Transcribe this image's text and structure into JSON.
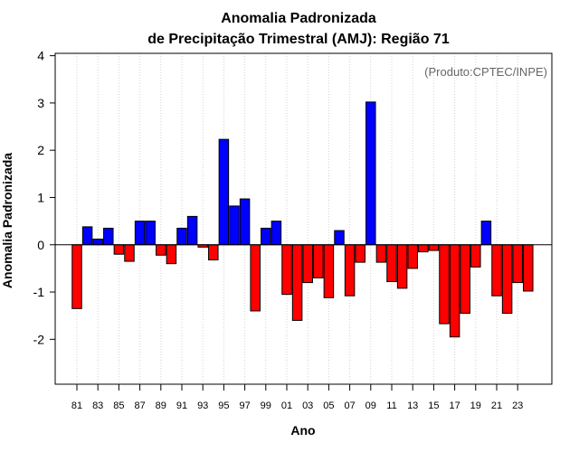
{
  "chart_data": {
    "type": "bar",
    "title": "Anomalia Padronizada",
    "subtitle": "de Precipitação Trimestral (AMJ): Região 71",
    "xlabel": "Ano",
    "ylabel": "Anomalia Padronizada",
    "annotation": "(Produto:CPTEC/INPE)",
    "ylim": [
      -2.95,
      4.05
    ],
    "yticks": [
      -2,
      -1,
      0,
      1,
      2,
      3,
      4
    ],
    "grid": "vertical-dotted",
    "colors": {
      "positive": "#0000ff",
      "negative": "#ff0000",
      "grid": "#d3d3d3",
      "annotation": "#666666"
    },
    "categories": [
      "81",
      "82",
      "83",
      "84",
      "85",
      "86",
      "87",
      "88",
      "89",
      "90",
      "91",
      "92",
      "93",
      "94",
      "95",
      "96",
      "97",
      "98",
      "99",
      "00",
      "01",
      "02",
      "03",
      "04",
      "05",
      "06",
      "07",
      "08",
      "09",
      "10",
      "11",
      "12",
      "13",
      "14",
      "15",
      "16",
      "17",
      "18",
      "19",
      "20",
      "21",
      "22",
      "23",
      "24"
    ],
    "tick_labels": [
      "81",
      "83",
      "85",
      "87",
      "89",
      "91",
      "93",
      "95",
      "97",
      "99",
      "01",
      "03",
      "05",
      "07",
      "09",
      "11",
      "13",
      "15",
      "17",
      "19",
      "21",
      "23"
    ],
    "values": [
      -1.35,
      0.38,
      0.12,
      0.35,
      -0.2,
      -0.35,
      0.5,
      0.5,
      -0.22,
      -0.4,
      0.35,
      0.6,
      -0.05,
      -0.32,
      2.23,
      0.82,
      0.97,
      -1.4,
      0.35,
      0.5,
      -1.05,
      -1.6,
      -0.8,
      -0.7,
      -1.12,
      0.3,
      -1.08,
      -0.37,
      3.02,
      -0.37,
      -0.78,
      -0.92,
      -0.5,
      -0.15,
      -0.12,
      -1.67,
      -1.95,
      -1.45,
      -0.47,
      0.5,
      -1.08,
      -1.45,
      -0.8,
      -0.98
    ]
  }
}
